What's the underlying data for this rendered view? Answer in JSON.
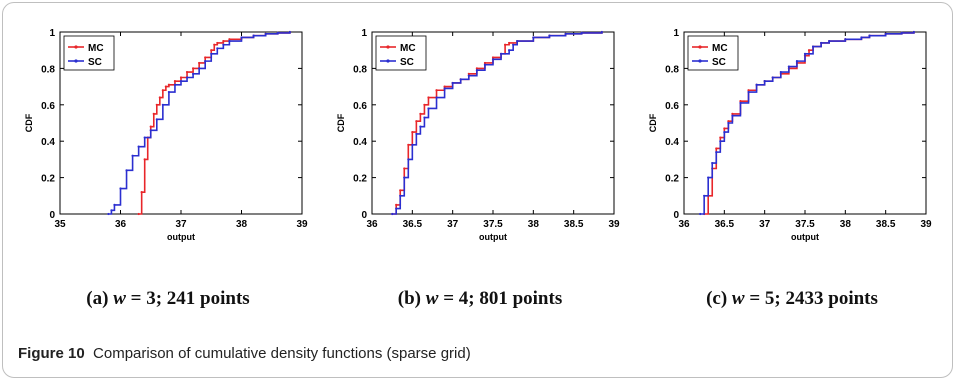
{
  "figure": {
    "label": "Figure 10",
    "caption": "Comparison of cumulative density functions (sparse grid)"
  },
  "colors": {
    "MC": "#e8262a",
    "SC": "#2b2fd0"
  },
  "chart_data": [
    {
      "type": "line",
      "caption": {
        "prefix": "(a) ",
        "var": "w",
        "rest": " = 3; 241 points"
      },
      "xlabel": "output",
      "ylabel": "CDF",
      "xlim": [
        35,
        39
      ],
      "ylim": [
        0,
        1
      ],
      "xticks": [
        "35",
        "36",
        "37",
        "38",
        "39"
      ],
      "yticks": [
        "0",
        "0.2",
        "0.4",
        "0.6",
        "0.8",
        "1"
      ],
      "legend": {
        "placement": "top-left",
        "entries": [
          "MC",
          "SC"
        ]
      },
      "series": [
        {
          "name": "MC",
          "x": [
            36.3,
            36.35,
            36.4,
            36.45,
            36.5,
            36.55,
            36.6,
            36.65,
            36.7,
            36.75,
            36.8,
            36.9,
            37.0,
            37.1,
            37.2,
            37.3,
            37.4,
            37.5,
            37.55,
            37.6,
            37.7,
            37.8,
            38.0,
            38.2,
            38.4,
            38.6,
            38.8
          ],
          "y": [
            0.0,
            0.12,
            0.3,
            0.42,
            0.48,
            0.55,
            0.6,
            0.64,
            0.68,
            0.7,
            0.71,
            0.73,
            0.75,
            0.78,
            0.8,
            0.83,
            0.86,
            0.9,
            0.93,
            0.94,
            0.95,
            0.96,
            0.97,
            0.98,
            0.99,
            0.995,
            1.0
          ]
        },
        {
          "name": "SC",
          "x": [
            35.8,
            35.85,
            35.9,
            36.0,
            36.1,
            36.2,
            36.3,
            36.4,
            36.5,
            36.6,
            36.7,
            36.8,
            36.9,
            37.0,
            37.1,
            37.2,
            37.3,
            37.4,
            37.5,
            37.6,
            37.7,
            37.8,
            38.0,
            38.2,
            38.4,
            38.6,
            38.8
          ],
          "y": [
            0.0,
            0.02,
            0.05,
            0.14,
            0.24,
            0.32,
            0.37,
            0.42,
            0.46,
            0.52,
            0.6,
            0.67,
            0.71,
            0.73,
            0.75,
            0.77,
            0.8,
            0.84,
            0.88,
            0.91,
            0.93,
            0.95,
            0.97,
            0.98,
            0.99,
            0.995,
            1.0
          ]
        }
      ]
    },
    {
      "type": "line",
      "caption": {
        "prefix": "(b) ",
        "var": "w",
        "rest": " = 4; 801 points"
      },
      "xlabel": "output",
      "ylabel": "CDF",
      "xlim": [
        36,
        39
      ],
      "ylim": [
        0,
        1
      ],
      "xticks": [
        "36",
        "36.5",
        "37",
        "37.5",
        "38",
        "38.5",
        "39"
      ],
      "yticks": [
        "0",
        "0.2",
        "0.4",
        "0.6",
        "0.8",
        "1"
      ],
      "legend": {
        "placement": "top-left",
        "entries": [
          "MC",
          "SC"
        ]
      },
      "series": [
        {
          "name": "MC",
          "x": [
            36.25,
            36.3,
            36.35,
            36.4,
            36.45,
            36.5,
            36.55,
            36.6,
            36.65,
            36.7,
            36.8,
            36.9,
            37.0,
            37.1,
            37.2,
            37.3,
            37.4,
            37.5,
            37.6,
            37.65,
            37.7,
            37.8,
            38.0,
            38.2,
            38.4,
            38.6,
            38.85
          ],
          "y": [
            0.0,
            0.05,
            0.13,
            0.25,
            0.38,
            0.45,
            0.51,
            0.55,
            0.6,
            0.64,
            0.68,
            0.7,
            0.72,
            0.74,
            0.77,
            0.8,
            0.83,
            0.86,
            0.88,
            0.93,
            0.94,
            0.95,
            0.97,
            0.98,
            0.99,
            0.995,
            1.0
          ]
        },
        {
          "name": "SC",
          "x": [
            36.25,
            36.3,
            36.35,
            36.4,
            36.45,
            36.5,
            36.55,
            36.6,
            36.65,
            36.7,
            36.8,
            36.9,
            37.0,
            37.1,
            37.2,
            37.3,
            37.4,
            37.5,
            37.6,
            37.7,
            37.75,
            37.8,
            38.0,
            38.2,
            38.4,
            38.6,
            38.85
          ],
          "y": [
            0.0,
            0.03,
            0.1,
            0.2,
            0.3,
            0.38,
            0.44,
            0.48,
            0.53,
            0.58,
            0.64,
            0.69,
            0.72,
            0.74,
            0.76,
            0.79,
            0.82,
            0.85,
            0.88,
            0.9,
            0.93,
            0.95,
            0.97,
            0.98,
            0.99,
            0.995,
            1.0
          ]
        }
      ]
    },
    {
      "type": "line",
      "caption": {
        "prefix": "(c) ",
        "var": "w",
        "rest": " = 5; 2433 points"
      },
      "xlabel": "output",
      "ylabel": "CDF",
      "xlim": [
        36,
        39
      ],
      "ylim": [
        0,
        1
      ],
      "xticks": [
        "36",
        "36.5",
        "37",
        "37.5",
        "38",
        "38.5",
        "39"
      ],
      "yticks": [
        "0",
        "0.2",
        "0.4",
        "0.6",
        "0.8",
        "1"
      ],
      "legend": {
        "placement": "top-left",
        "entries": [
          "MC",
          "SC"
        ]
      },
      "series": [
        {
          "name": "MC",
          "x": [
            36.25,
            36.3,
            36.35,
            36.4,
            36.45,
            36.5,
            36.55,
            36.6,
            36.7,
            36.8,
            36.9,
            37.0,
            37.1,
            37.2,
            37.3,
            37.4,
            37.5,
            37.55,
            37.6,
            37.7,
            37.8,
            38.0,
            38.2,
            38.3,
            38.5,
            38.7,
            38.85
          ],
          "y": [
            0.0,
            0.1,
            0.25,
            0.36,
            0.42,
            0.47,
            0.51,
            0.55,
            0.62,
            0.68,
            0.71,
            0.73,
            0.75,
            0.77,
            0.8,
            0.83,
            0.87,
            0.9,
            0.92,
            0.94,
            0.95,
            0.96,
            0.97,
            0.98,
            0.99,
            0.995,
            1.0
          ]
        },
        {
          "name": "SC",
          "x": [
            36.2,
            36.25,
            36.3,
            36.35,
            36.4,
            36.45,
            36.5,
            36.55,
            36.6,
            36.7,
            36.8,
            36.9,
            37.0,
            37.1,
            37.2,
            37.3,
            37.4,
            37.5,
            37.6,
            37.7,
            37.8,
            38.0,
            38.2,
            38.3,
            38.5,
            38.7,
            38.85
          ],
          "y": [
            0.0,
            0.1,
            0.2,
            0.28,
            0.34,
            0.4,
            0.45,
            0.5,
            0.54,
            0.61,
            0.67,
            0.71,
            0.73,
            0.75,
            0.78,
            0.81,
            0.84,
            0.88,
            0.92,
            0.94,
            0.95,
            0.96,
            0.97,
            0.98,
            0.99,
            0.995,
            1.0
          ]
        }
      ]
    }
  ]
}
